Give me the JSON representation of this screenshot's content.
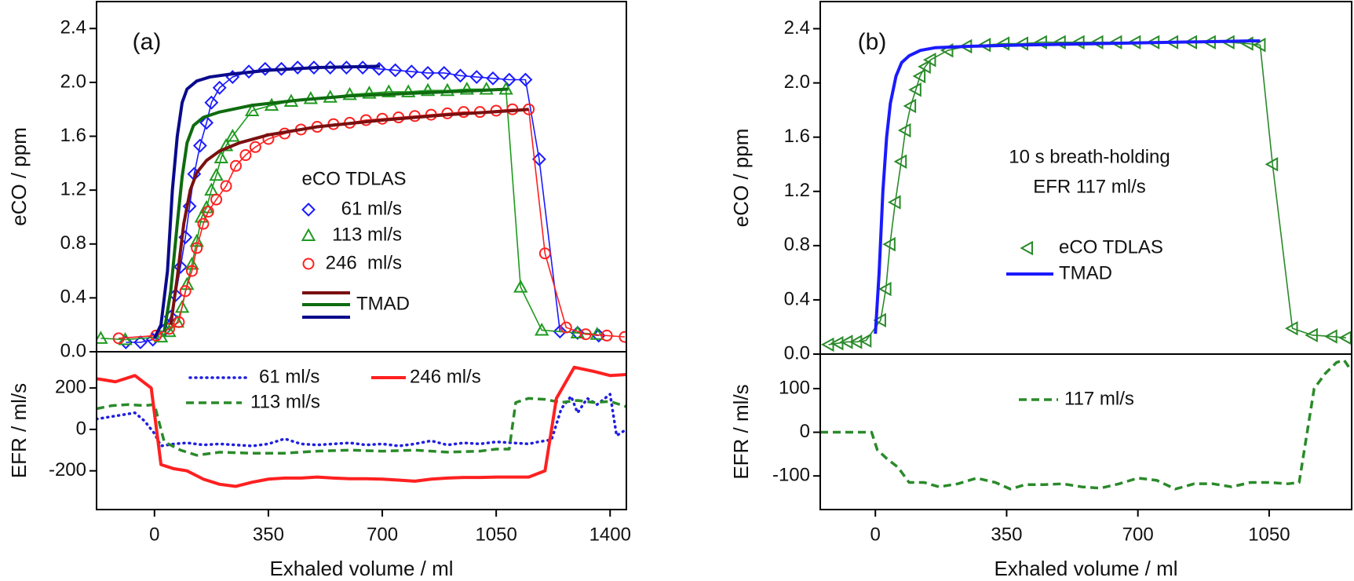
{
  "chart_data": [
    {
      "type": "line",
      "panel_label": "(a)",
      "ylabel": "eCO / ppm",
      "xlim": [
        -178,
        1450
      ],
      "ylim": [
        0,
        2.6
      ],
      "yticks": [
        {
          "value": 0,
          "label": "0.0"
        },
        0.4,
        0.8,
        1.2,
        1.6,
        {
          "value": 2,
          "label": "2.0"
        },
        2.4
      ],
      "legend_title": "eCO TDLAS",
      "fit_legend": "TMAD",
      "series": [
        {
          "name": "61 ml/s",
          "color": "#1a1aff",
          "marker": "diamond",
          "x": [
            -88,
            -43,
            -5,
            30,
            50,
            65,
            80,
            95,
            108,
            122,
            140,
            160,
            175,
            200,
            240,
            290,
            340,
            390,
            440,
            490,
            540,
            590,
            640,
            690,
            740,
            790,
            840,
            890,
            940,
            990,
            1040,
            1090,
            1140,
            1182,
            1246,
            1300,
            1365
          ],
          "values": [
            0.07,
            0.07,
            0.09,
            0.16,
            0.26,
            0.42,
            0.63,
            0.85,
            1.08,
            1.32,
            1.53,
            1.7,
            1.85,
            1.96,
            2.04,
            2.08,
            2.1,
            2.1,
            2.11,
            2.11,
            2.11,
            2.11,
            2.11,
            2.1,
            2.09,
            2.08,
            2.07,
            2.07,
            2.05,
            2.04,
            2.03,
            2.02,
            2.02,
            1.43,
            0.15,
            0.14,
            0.12
          ]
        },
        {
          "name": "113 ml/s",
          "color": "#1f9a1f",
          "marker": "triangle",
          "x": [
            -165,
            -90,
            20,
            45,
            70,
            85,
            100,
            115,
            130,
            145,
            160,
            175,
            190,
            205,
            220,
            240,
            300,
            360,
            420,
            480,
            540,
            600,
            660,
            720,
            780,
            840,
            900,
            960,
            1020,
            1080,
            1125,
            1190,
            1300,
            1360
          ],
          "values": [
            0.1,
            0.09,
            0.11,
            0.15,
            0.22,
            0.33,
            0.5,
            0.65,
            0.82,
            1.0,
            1.07,
            1.2,
            1.31,
            1.44,
            1.53,
            1.6,
            1.79,
            1.83,
            1.86,
            1.88,
            1.89,
            1.91,
            1.92,
            1.93,
            1.93,
            1.94,
            1.94,
            1.95,
            1.95,
            1.95,
            0.48,
            0.16,
            0.14,
            0.13
          ]
        },
        {
          "name": "246  ml/s",
          "color": "#ff2020",
          "marker": "circle",
          "x": [
            -110,
            5,
            45,
            75,
            95,
            115,
            130,
            150,
            165,
            190,
            220,
            250,
            280,
            310,
            350,
            400,
            450,
            500,
            550,
            600,
            650,
            700,
            750,
            800,
            850,
            900,
            950,
            1000,
            1050,
            1100,
            1150,
            1200,
            1265,
            1325,
            1390,
            1445
          ],
          "values": [
            0.1,
            0.12,
            0.17,
            0.22,
            0.45,
            0.6,
            0.77,
            0.95,
            1.04,
            1.13,
            1.23,
            1.38,
            1.46,
            1.52,
            1.58,
            1.62,
            1.65,
            1.67,
            1.69,
            1.7,
            1.72,
            1.73,
            1.74,
            1.75,
            1.76,
            1.77,
            1.78,
            1.78,
            1.79,
            1.8,
            1.8,
            0.73,
            0.18,
            0.13,
            0.12,
            0.11
          ]
        },
        {
          "color": "#0a0a8c",
          "x": [
            0,
            20,
            40,
            55,
            70,
            85,
            100,
            130,
            170,
            230,
            350,
            500,
            693
          ],
          "values": [
            0.1,
            0.2,
            0.6,
            1.2,
            1.6,
            1.85,
            1.95,
            2.01,
            2.04,
            2.06,
            2.09,
            2.11,
            2.12
          ]
        },
        {
          "color": "#0f6b0f",
          "x": [
            30,
            50,
            70,
            85,
            100,
            120,
            150,
            200,
            300,
            450,
            600,
            800,
            1000,
            1087
          ],
          "values": [
            0.15,
            0.45,
            0.95,
            1.3,
            1.55,
            1.68,
            1.74,
            1.78,
            1.83,
            1.87,
            1.9,
            1.92,
            1.94,
            1.95
          ]
        },
        {
          "color": "#7a1010",
          "x": [
            50,
            70,
            90,
            110,
            130,
            160,
            200,
            260,
            350,
            500,
            700,
            900,
            1100,
            1150
          ],
          "values": [
            0.2,
            0.55,
            0.95,
            1.2,
            1.33,
            1.42,
            1.49,
            1.55,
            1.61,
            1.67,
            1.72,
            1.76,
            1.79,
            1.8
          ]
        }
      ]
    },
    {
      "type": "line",
      "ylabel": "EFR / ml/s",
      "xlabel": "Exhaled volume / ml",
      "xlim": [
        -178,
        1450
      ],
      "ylim": [
        -387,
        375
      ],
      "xticks": [
        0,
        350,
        700,
        1050,
        1400
      ],
      "yticks": [
        -200,
        0,
        200
      ],
      "series": [
        {
          "name": "61 ml/s",
          "color": "#1f1fe0",
          "dash": "dotted",
          "x": [
            -178,
            -140,
            -100,
            -60,
            -30,
            0,
            20,
            60,
            100,
            150,
            200,
            250,
            300,
            350,
            400,
            450,
            500,
            550,
            600,
            650,
            700,
            750,
            800,
            850,
            900,
            950,
            1000,
            1050,
            1100,
            1150,
            1180,
            1220,
            1250,
            1280,
            1300,
            1330,
            1360,
            1400,
            1420,
            1450
          ],
          "values": [
            50,
            60,
            70,
            80,
            40,
            -20,
            -80,
            -70,
            -65,
            -75,
            -70,
            -75,
            -80,
            -70,
            -45,
            -70,
            -75,
            -70,
            -65,
            -75,
            -70,
            -80,
            -70,
            -55,
            -75,
            -65,
            -70,
            -60,
            -65,
            -70,
            -60,
            -50,
            100,
            160,
            80,
            150,
            120,
            170,
            -30,
            0
          ]
        },
        {
          "name": "113 ml/s",
          "color": "#2a8a2a",
          "dash": "dashed",
          "x": [
            -178,
            -130,
            -80,
            -30,
            0,
            30,
            80,
            130,
            200,
            300,
            400,
            500,
            600,
            700,
            800,
            900,
            1000,
            1050,
            1090,
            1110,
            1150,
            1200,
            1250,
            1300,
            1350,
            1400,
            1450
          ],
          "values": [
            100,
            115,
            120,
            115,
            120,
            -60,
            -100,
            -125,
            -110,
            -115,
            -115,
            -105,
            -100,
            -105,
            -100,
            -110,
            -105,
            -95,
            -95,
            130,
            150,
            145,
            130,
            140,
            130,
            135,
            110
          ]
        },
        {
          "name": "246 ml/s",
          "color": "#ff2020",
          "x": [
            -178,
            -120,
            -60,
            -10,
            20,
            60,
            100,
            150,
            200,
            250,
            300,
            350,
            400,
            450,
            500,
            550,
            600,
            650,
            700,
            750,
            800,
            850,
            900,
            950,
            1000,
            1050,
            1100,
            1150,
            1200,
            1235,
            1290,
            1350,
            1400,
            1450
          ],
          "values": [
            245,
            230,
            260,
            200,
            -170,
            -190,
            -200,
            -240,
            -265,
            -275,
            -255,
            -240,
            -235,
            -235,
            -230,
            -235,
            -238,
            -238,
            -240,
            -245,
            -250,
            -240,
            -235,
            -232,
            -232,
            -230,
            -230,
            -230,
            -200,
            150,
            300,
            280,
            260,
            265
          ]
        }
      ]
    },
    {
      "type": "line",
      "panel_label": "(b)",
      "ylabel": "eCO / ppm",
      "xlim": [
        -147,
        1270
      ],
      "ylim": [
        0,
        2.6
      ],
      "yticks": [
        {
          "value": 0,
          "label": "0.0"
        },
        0.4,
        0.8,
        1.2,
        1.6,
        {
          "value": 2,
          "label": "2.0"
        },
        2.4
      ],
      "annotations": [
        "10 s breath-holding",
        "EFR 117 ml/s"
      ],
      "series": [
        {
          "name": "eCO TDLAS",
          "color": "#2a8a2a",
          "marker": "triangle-left",
          "x": [
            -125,
            -100,
            -75,
            -50,
            -25,
            14,
            28,
            39,
            53,
            69,
            80,
            94,
            108,
            119,
            133,
            147,
            193,
            243,
            293,
            343,
            393,
            443,
            493,
            543,
            593,
            643,
            693,
            743,
            793,
            843,
            893,
            943,
            993,
            1026,
            1059,
            1112,
            1165,
            1217,
            1255
          ],
          "values": [
            0.07,
            0.08,
            0.09,
            0.09,
            0.1,
            0.25,
            0.48,
            0.81,
            1.12,
            1.42,
            1.65,
            1.83,
            1.95,
            2.05,
            2.12,
            2.17,
            2.24,
            2.27,
            2.28,
            2.29,
            2.29,
            2.3,
            2.3,
            2.3,
            2.3,
            2.3,
            2.3,
            2.3,
            2.3,
            2.3,
            2.3,
            2.3,
            2.29,
            2.28,
            1.4,
            0.19,
            0.14,
            0.13,
            0.12
          ]
        },
        {
          "name": "TMAD",
          "color": "#1a1aff",
          "x": [
            0,
            10,
            20,
            30,
            40,
            55,
            70,
            90,
            120,
            160,
            250,
            400,
            600,
            800,
            1000,
            1026
          ],
          "values": [
            0.15,
            0.6,
            1.2,
            1.6,
            1.85,
            2.05,
            2.15,
            2.2,
            2.24,
            2.26,
            2.27,
            2.28,
            2.29,
            2.3,
            2.31,
            2.31
          ]
        }
      ]
    },
    {
      "type": "line",
      "ylabel": "EFR / ml/s",
      "xlabel": "Exhaled volume / ml",
      "xlim": [
        -147,
        1270
      ],
      "ylim": [
        -177,
        179
      ],
      "xticks": [
        0,
        350,
        700,
        1050
      ],
      "yticks": [
        -100,
        0,
        100
      ],
      "series": [
        {
          "name": "117 ml/s",
          "color": "#2a8a2a",
          "dash": "dashed",
          "x": [
            -147,
            -100,
            -50,
            -10,
            5,
            30,
            60,
            90,
            130,
            170,
            220,
            270,
            320,
            360,
            400,
            450,
            500,
            550,
            600,
            650,
            700,
            750,
            800,
            850,
            900,
            950,
            1000,
            1050,
            1100,
            1130,
            1170,
            1200,
            1230,
            1250,
            1270
          ],
          "values": [
            0,
            0,
            0,
            0,
            -40,
            -60,
            -80,
            -115,
            -115,
            -125,
            -118,
            -105,
            -115,
            -130,
            -120,
            -120,
            -118,
            -125,
            -128,
            -118,
            -105,
            -110,
            -130,
            -118,
            -118,
            -125,
            -115,
            -115,
            -118,
            -115,
            100,
            135,
            160,
            165,
            140
          ]
        }
      ]
    }
  ]
}
